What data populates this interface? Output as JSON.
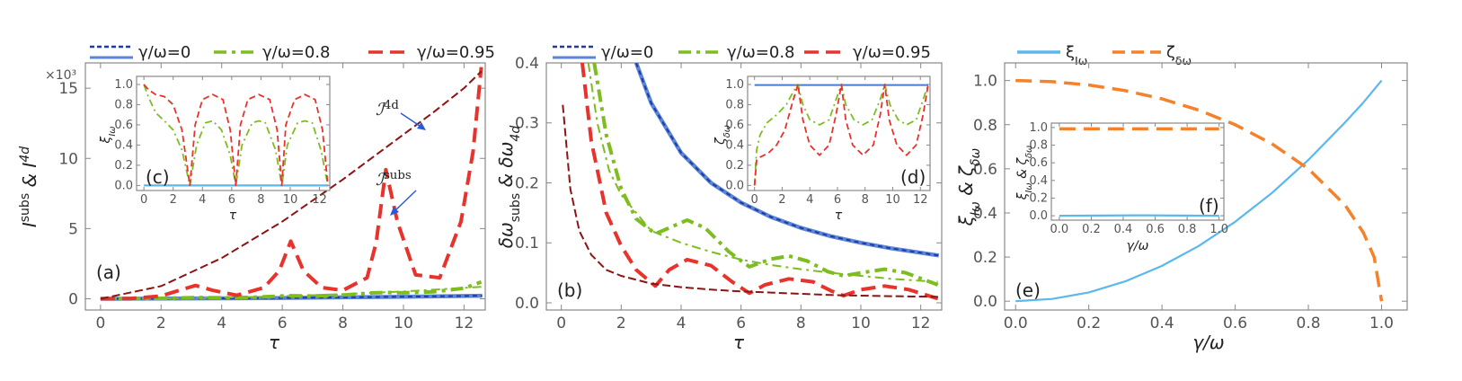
{
  "colors": {
    "blue": "#3b5bc4",
    "lightblue": "#5bb8ea",
    "green": "#7dbd1f",
    "red": "#e8332c",
    "darkred": "#8c1414",
    "orange": "#f5812b",
    "arrow": "#2a5bd7",
    "frame": "#888888"
  },
  "legend_a": [
    "γ/ω=0",
    "γ/ω=0.8",
    "γ/ω=0.95"
  ],
  "legend_b": [
    "γ/ω=0",
    "γ/ω=0.8",
    "γ/ω=0.95"
  ],
  "legend_e": [
    "ξ",
    "ζ"
  ],
  "legend_e_sub": [
    "Iω",
    "δω"
  ],
  "chart_data": [
    {
      "id": "a",
      "type": "line",
      "panel_label": "(a)",
      "xlabel": "τ",
      "ylabel": "I_ω^subs & I_ω^4d",
      "ylabel_main": "I",
      "ylabel_sup1": "subs",
      "ylabel_mid": " & I",
      "ylabel_sup2": "4d",
      "ylabel_sub": "ω",
      "multiplier": "×10³",
      "xlim": [
        -0.5,
        12.7
      ],
      "ylim": [
        -0.8,
        16.8
      ],
      "xticks": [
        "0",
        "2",
        "4",
        "6",
        "8",
        "10",
        "12"
      ],
      "xtick_values": [
        0,
        2,
        4,
        6,
        8,
        10,
        12
      ],
      "yticks": [
        "0",
        "5",
        "10",
        "15"
      ],
      "ytick_values": [
        0,
        5,
        10,
        15
      ],
      "annotations": [
        {
          "text": "ℐ",
          "sup": "4d",
          "sub": "ω",
          "tau": 11,
          "value": 12.6
        },
        {
          "text": "ℐ",
          "sup": "subs",
          "sub": "ω",
          "tau": 10,
          "value": 5.6
        }
      ],
      "series": [
        {
          "name": "γ/ω=0",
          "style": "solid-blue-dashed-overlay",
          "x": [
            0,
            2,
            4,
            6,
            8,
            10,
            12.6
          ],
          "y": [
            0,
            0.01,
            0.03,
            0.06,
            0.1,
            0.15,
            0.22
          ]
        },
        {
          "name": "γ/ω=0.8 subs",
          "style": "green-dashdot-thick",
          "x": [
            0,
            1,
            2,
            3,
            3.14,
            4,
            5,
            6,
            6.28,
            7,
            8,
            9,
            9.42,
            10,
            11,
            12,
            12.57
          ],
          "y": [
            0,
            0.01,
            0.03,
            0.08,
            0.09,
            0.07,
            0.1,
            0.2,
            0.22,
            0.2,
            0.26,
            0.42,
            0.45,
            0.42,
            0.5,
            0.75,
            1.2
          ]
        },
        {
          "name": "γ/ω=0.8 4d",
          "style": "green-dashdot-thin",
          "x": [
            0,
            2,
            4,
            6,
            8,
            10,
            12.57
          ],
          "y": [
            0,
            0.02,
            0.08,
            0.18,
            0.33,
            0.52,
            0.85
          ]
        },
        {
          "name": "γ/ω=0.95 subs",
          "style": "red-dashed-thick",
          "x": [
            0,
            1,
            2,
            2.6,
            3.14,
            3.7,
            4.5,
            5.4,
            5.9,
            6.28,
            6.7,
            7.3,
            8,
            8.8,
            9.1,
            9.42,
            9.8,
            10.4,
            11.2,
            11.9,
            12.3,
            12.57
          ],
          "y": [
            0,
            0.02,
            0.2,
            0.6,
            0.95,
            0.6,
            0.25,
            0.8,
            2.0,
            4.1,
            2.0,
            0.8,
            0.6,
            1.5,
            4.0,
            9.2,
            5.5,
            1.7,
            1.5,
            5.5,
            10.5,
            16.5
          ]
        },
        {
          "name": "γ/ω=0.95 4d",
          "style": "darkred-dashed-thin",
          "x": [
            0,
            2,
            4,
            6,
            8,
            10,
            11,
            12,
            12.57
          ],
          "y": [
            0,
            0.9,
            2.9,
            5.5,
            8.5,
            11.7,
            13.3,
            15.0,
            16.2
          ]
        }
      ],
      "inset": {
        "panel_label": "(c)",
        "xlabel": "τ",
        "ylabel": "ξIω",
        "ylabel_main": "ξ",
        "ylabel_sub": "Iω",
        "xlim": [
          -0.5,
          12.7
        ],
        "ylim": [
          -0.05,
          1.08
        ],
        "xticks": [
          "0",
          "2",
          "4",
          "6",
          "8",
          "10",
          "12"
        ],
        "xtick_values": [
          0,
          2,
          4,
          6,
          8,
          10,
          12
        ],
        "yticks": [
          "0.0",
          "0.2",
          "0.4",
          "0.6",
          "0.8",
          "1.0"
        ],
        "ytick_values": [
          0,
          0.2,
          0.4,
          0.6,
          0.8,
          1.0
        ],
        "series": [
          {
            "name": "γ/ω=0",
            "style": "lightblue",
            "x": [
              0,
              12.57
            ],
            "y": [
              0,
              0
            ]
          },
          {
            "name": "γ/ω=0.8",
            "style": "green-dashdot",
            "x": [
              0,
              0.3,
              0.8,
              1.4,
              2.0,
              2.6,
              3.14,
              3.6,
              4.2,
              4.7,
              5.3,
              5.9,
              6.28,
              6.7,
              7.4,
              7.85,
              8.3,
              9.0,
              9.42,
              9.8,
              10.5,
              11.0,
              11.5,
              12.1,
              12.57
            ],
            "y": [
              1.0,
              0.88,
              0.72,
              0.64,
              0.55,
              0.35,
              0,
              0.4,
              0.62,
              0.64,
              0.55,
              0.3,
              0,
              0.4,
              0.62,
              0.64,
              0.62,
              0.35,
              0,
              0.4,
              0.62,
              0.64,
              0.62,
              0.35,
              0
            ]
          },
          {
            "name": "γ/ω=0.95",
            "style": "red-dashed",
            "x": [
              0,
              0.3,
              0.8,
              1.4,
              2.0,
              2.6,
              3.14,
              3.5,
              4.0,
              4.7,
              5.4,
              5.9,
              6.28,
              6.6,
              7.1,
              7.85,
              8.6,
              9.1,
              9.42,
              9.7,
              10.3,
              11.0,
              11.7,
              12.2,
              12.57
            ],
            "y": [
              1.0,
              0.95,
              0.9,
              0.88,
              0.8,
              0.55,
              0,
              0.6,
              0.85,
              0.9,
              0.85,
              0.55,
              0,
              0.6,
              0.85,
              0.9,
              0.85,
              0.55,
              0,
              0.6,
              0.85,
              0.9,
              0.85,
              0.55,
              0
            ]
          }
        ]
      }
    },
    {
      "id": "b",
      "type": "line",
      "panel_label": "(b)",
      "xlabel": "τ",
      "ylabel": "δω_subs & δω_4d",
      "ylabel_main": "δω",
      "ylabel_sub1": "subs",
      "ylabel_mid": " & δω",
      "ylabel_sub2": "4d",
      "xlim": [
        -0.5,
        12.7
      ],
      "ylim": [
        -0.012,
        0.4
      ],
      "xticks": [
        "0",
        "2",
        "4",
        "6",
        "8",
        "10",
        "12"
      ],
      "xtick_values": [
        0,
        2,
        4,
        6,
        8,
        10,
        12
      ],
      "yticks": [
        "0.0",
        "0.1",
        "0.2",
        "0.3",
        "0.4"
      ],
      "ytick_values": [
        0,
        0.1,
        0.2,
        0.3,
        0.4
      ],
      "series": [
        {
          "name": "γ/ω=0",
          "style": "solid-blue-dashed-overlay",
          "x": [
            2.5,
            3,
            4,
            5,
            6,
            7,
            8,
            9,
            10,
            11,
            12.6
          ],
          "y": [
            0.4,
            0.333,
            0.25,
            0.2,
            0.167,
            0.143,
            0.125,
            0.111,
            0.1,
            0.091,
            0.079
          ]
        },
        {
          "name": "γ/ω=0.8 subs",
          "style": "green-dashdot-thick",
          "x": [
            1.1,
            1.5,
            2.0,
            2.5,
            3.14,
            3.6,
            4.2,
            4.8,
            5.6,
            6.28,
            7.0,
            7.6,
            8.2,
            8.9,
            9.42,
            10.0,
            10.8,
            11.5,
            12.57
          ],
          "y": [
            0.4,
            0.28,
            0.19,
            0.14,
            0.115,
            0.125,
            0.138,
            0.125,
            0.085,
            0.06,
            0.073,
            0.078,
            0.07,
            0.052,
            0.045,
            0.05,
            0.056,
            0.05,
            0.03
          ]
        },
        {
          "name": "γ/ω=0.8 4d",
          "style": "green-dashdot-thin",
          "x": [
            0.9,
            1.2,
            1.6,
            2,
            3,
            4,
            5,
            6,
            7,
            8,
            9,
            10,
            11,
            12.57
          ],
          "y": [
            0.4,
            0.3,
            0.22,
            0.18,
            0.12,
            0.1,
            0.085,
            0.072,
            0.063,
            0.056,
            0.05,
            0.045,
            0.04,
            0.035
          ]
        },
        {
          "name": "γ/ω=0.95 subs",
          "style": "red-dashed-thick",
          "x": [
            0.7,
            1,
            1.5,
            2,
            2.5,
            3.14,
            3.6,
            4.2,
            5.0,
            5.7,
            6.28,
            6.8,
            7.6,
            8.4,
            9.0,
            9.42,
            10.0,
            10.8,
            11.6,
            12.57
          ],
          "y": [
            0.4,
            0.27,
            0.15,
            0.095,
            0.055,
            0.028,
            0.055,
            0.072,
            0.062,
            0.035,
            0.016,
            0.03,
            0.04,
            0.035,
            0.02,
            0.012,
            0.022,
            0.028,
            0.022,
            0.007
          ]
        },
        {
          "name": "γ/ω=0.95 4d",
          "style": "darkred-dashed-thin",
          "x": [
            0.05,
            0.3,
            0.6,
            1,
            1.5,
            2,
            3,
            4,
            5,
            6,
            7,
            8,
            9,
            10,
            11,
            12.57
          ],
          "y": [
            0.33,
            0.19,
            0.12,
            0.08,
            0.055,
            0.045,
            0.032,
            0.026,
            0.022,
            0.019,
            0.017,
            0.015,
            0.013,
            0.012,
            0.011,
            0.01
          ]
        }
      ],
      "inset": {
        "panel_label": "(d)",
        "xlabel": "τ",
        "ylabel": "ζδω",
        "ylabel_main": "ζ",
        "ylabel_sub": "δω",
        "xlim": [
          -0.5,
          12.7
        ],
        "ylim": [
          -0.05,
          1.08
        ],
        "xticks": [
          "0",
          "2",
          "4",
          "6",
          "8",
          "10",
          "12"
        ],
        "xtick_values": [
          0,
          2,
          4,
          6,
          8,
          10,
          12
        ],
        "yticks": [
          "0.0",
          "0.2",
          "0.4",
          "0.6",
          "0.8",
          "1.0"
        ],
        "ytick_values": [
          0,
          0.2,
          0.4,
          0.6,
          0.8,
          1.0
        ],
        "series": [
          {
            "name": "γ/ω=0",
            "style": "blue",
            "x": [
              0,
              12.57
            ],
            "y": [
              0.995,
              0.995
            ]
          },
          {
            "name": "γ/ω=0.8",
            "style": "green-dashdot",
            "x": [
              0,
              0.15,
              0.4,
              0.9,
              1.6,
              2.3,
              2.8,
              3.14,
              3.5,
              4.0,
              4.7,
              5.4,
              5.9,
              6.28,
              6.6,
              7.2,
              7.85,
              8.5,
              9.1,
              9.42,
              9.8,
              10.4,
              11.0,
              11.7,
              12.2,
              12.57
            ],
            "y": [
              0,
              0.35,
              0.5,
              0.62,
              0.7,
              0.8,
              0.93,
              1.0,
              0.8,
              0.65,
              0.6,
              0.65,
              0.85,
              1.0,
              0.8,
              0.65,
              0.6,
              0.65,
              0.85,
              1.0,
              0.8,
              0.65,
              0.6,
              0.65,
              0.85,
              1.0
            ]
          },
          {
            "name": "γ/ω=0.95",
            "style": "red-dashed",
            "x": [
              0,
              0.15,
              0.4,
              1.0,
              1.6,
              2.2,
              2.7,
              3.14,
              3.5,
              4.0,
              4.7,
              5.4,
              5.9,
              6.28,
              6.6,
              7.1,
              7.85,
              8.6,
              9.1,
              9.42,
              9.75,
              10.3,
              11.0,
              11.7,
              12.2,
              12.57
            ],
            "y": [
              0,
              0.25,
              0.28,
              0.32,
              0.4,
              0.55,
              0.8,
              1.0,
              0.65,
              0.4,
              0.3,
              0.4,
              0.7,
              1.0,
              0.65,
              0.4,
              0.3,
              0.4,
              0.7,
              1.0,
              0.65,
              0.4,
              0.3,
              0.4,
              0.7,
              1.0
            ]
          }
        ]
      }
    },
    {
      "id": "e",
      "type": "line",
      "panel_label": "(e)",
      "xlabel": "γ/ω",
      "ylabel": "ξIω & ζδω",
      "ylabel_main1": "ξ",
      "ylabel_sub1": "Iω",
      "ylabel_mid": " & ζ",
      "ylabel_sub2": "δω",
      "xlim": [
        -0.03,
        1.07
      ],
      "ylim": [
        -0.04,
        1.08
      ],
      "xticks": [
        "0.0",
        "0.2",
        "0.4",
        "0.6",
        "0.8",
        "1.0"
      ],
      "xtick_values": [
        0,
        0.2,
        0.4,
        0.6,
        0.8,
        1.0
      ],
      "yticks": [
        "0.0",
        "0.2",
        "0.4",
        "0.6",
        "0.8",
        "1.0"
      ],
      "ytick_values": [
        0,
        0.2,
        0.4,
        0.6,
        0.8,
        1.0
      ],
      "series": [
        {
          "name": "ξIω",
          "style": "lightblue",
          "x": [
            0,
            0.1,
            0.2,
            0.3,
            0.4,
            0.5,
            0.6,
            0.7,
            0.8,
            0.9,
            0.95,
            1.0
          ],
          "y": [
            0,
            0.01,
            0.04,
            0.09,
            0.16,
            0.25,
            0.36,
            0.49,
            0.64,
            0.81,
            0.9,
            1.0
          ]
        },
        {
          "name": "ζδω",
          "style": "orange-dashed",
          "x": [
            0,
            0.1,
            0.2,
            0.3,
            0.4,
            0.5,
            0.6,
            0.7,
            0.8,
            0.9,
            0.95,
            0.98,
            1.0
          ],
          "y": [
            1.0,
            0.995,
            0.98,
            0.954,
            0.917,
            0.866,
            0.8,
            0.714,
            0.6,
            0.436,
            0.312,
            0.199,
            0
          ]
        }
      ],
      "inset": {
        "panel_label": "(f)",
        "xlabel": "γ/ω",
        "ylabel": "ξIω & ζδω",
        "xlim": [
          -0.05,
          1.03
        ],
        "ylim": [
          -0.05,
          1.05
        ],
        "xticks": [
          "0.0",
          "0.2",
          "0.4",
          "0.6",
          "0.8",
          "1.0"
        ],
        "xtick_values": [
          0,
          0.2,
          0.4,
          0.6,
          0.8,
          1.0
        ],
        "yticks": [
          "0.0",
          "0.2",
          "0.4",
          "0.6",
          "0.8",
          "1.0"
        ],
        "ytick_values": [
          0,
          0.2,
          0.4,
          0.6,
          0.8,
          1.0
        ],
        "series": [
          {
            "name": "ξIω",
            "style": "lightblue",
            "x": [
              0,
              0.5,
              1.0
            ],
            "y": [
              0,
              0.005,
              0
            ]
          },
          {
            "name": "ζδω",
            "style": "orange-dashed",
            "x": [
              0,
              1.0
            ],
            "y": [
              0.985,
              0.985
            ]
          }
        ]
      }
    }
  ]
}
